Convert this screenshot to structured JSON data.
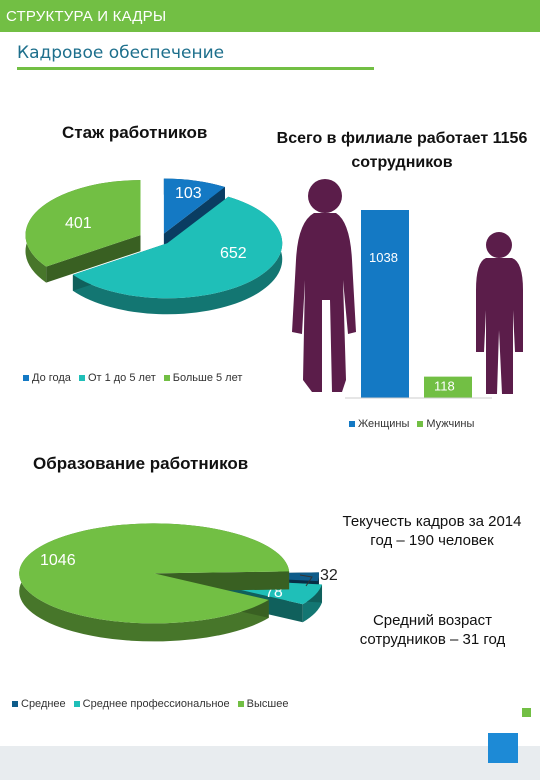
{
  "header": {
    "section_title": "СТРУКТУРА И КАДРЫ",
    "subtitle": "Кадровое обеспечение"
  },
  "colors": {
    "green": "#72bf44",
    "teal": "#1fbfb8",
    "blue": "#1479c4",
    "accent": "#1d6f8c"
  },
  "notes": {
    "total": "Всего в филиале работает 1156 сотрудников",
    "turnover": "Текучесть кадров за 2014 год – 190 человек",
    "age": "Средний возраст сотрудников – 31 год"
  },
  "chart_data": [
    {
      "type": "pie",
      "title": "Стаж работников",
      "categories": [
        "До года",
        "От 1 до 5 лет",
        "Больше 5 лет"
      ],
      "values": [
        103,
        652,
        401
      ],
      "colors": [
        "#1479c4",
        "#1fbfb8",
        "#72bf44"
      ],
      "legend": "bottom"
    },
    {
      "type": "bar",
      "title": "",
      "categories": [
        "Женщины",
        "Мужчины"
      ],
      "values": [
        1038,
        118
      ],
      "colors": [
        "#1479c4",
        "#72bf44"
      ],
      "legend": "bottom"
    },
    {
      "type": "pie",
      "title": "Образование работников",
      "categories": [
        "Среднее",
        "Среднее профессиональное",
        "Высшее"
      ],
      "values": [
        32,
        78,
        1046
      ],
      "colors": [
        "#0e5c8a",
        "#1fbfb8",
        "#72bf44"
      ],
      "legend": "bottom"
    }
  ]
}
